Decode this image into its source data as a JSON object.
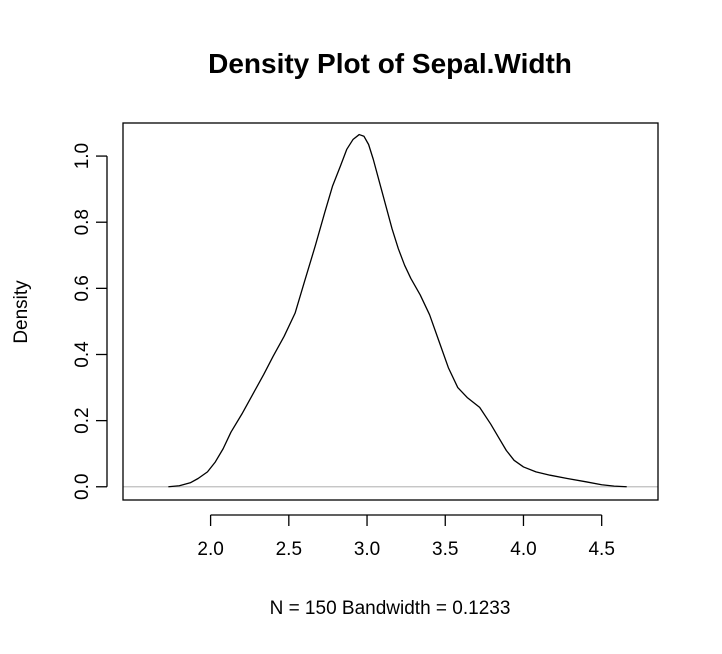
{
  "chart_data": {
    "type": "line",
    "title": "Density Plot of Sepal.Width",
    "xlabel": "N = 150   Bandwidth = 0.1233",
    "ylabel": "Density",
    "xlim": [
      1.44,
      4.86
    ],
    "ylim": [
      -0.04,
      1.1
    ],
    "x_ticks": [
      "2.0",
      "2.5",
      "3.0",
      "3.5",
      "4.0",
      "4.5"
    ],
    "y_ticks": [
      "0.0",
      "0.2",
      "0.4",
      "0.6",
      "0.8",
      "1.0"
    ],
    "baseline": 0,
    "grid": false,
    "series": [
      {
        "x": [
          1.73,
          1.8,
          1.87,
          1.92,
          1.98,
          2.03,
          2.08,
          2.13,
          2.2,
          2.27,
          2.34,
          2.4,
          2.47,
          2.54,
          2.6,
          2.67,
          2.73,
          2.78,
          2.83,
          2.87,
          2.91,
          2.95,
          2.98,
          3.01,
          3.04,
          3.08,
          3.12,
          3.16,
          3.2,
          3.24,
          3.28,
          3.34,
          3.4,
          3.46,
          3.52,
          3.58,
          3.64,
          3.72,
          3.79,
          3.84,
          3.89,
          3.94,
          4.0,
          4.08,
          4.17,
          4.28,
          4.4,
          4.5,
          4.58,
          4.66
        ],
        "y": [
          0.0,
          0.003,
          0.012,
          0.025,
          0.045,
          0.075,
          0.115,
          0.165,
          0.22,
          0.28,
          0.34,
          0.395,
          0.455,
          0.525,
          0.62,
          0.73,
          0.83,
          0.91,
          0.97,
          1.02,
          1.05,
          1.065,
          1.06,
          1.035,
          0.99,
          0.92,
          0.85,
          0.78,
          0.72,
          0.67,
          0.63,
          0.58,
          0.52,
          0.44,
          0.36,
          0.3,
          0.27,
          0.24,
          0.19,
          0.15,
          0.11,
          0.08,
          0.06,
          0.045,
          0.035,
          0.025,
          0.015,
          0.006,
          0.002,
          0.0
        ]
      }
    ]
  }
}
